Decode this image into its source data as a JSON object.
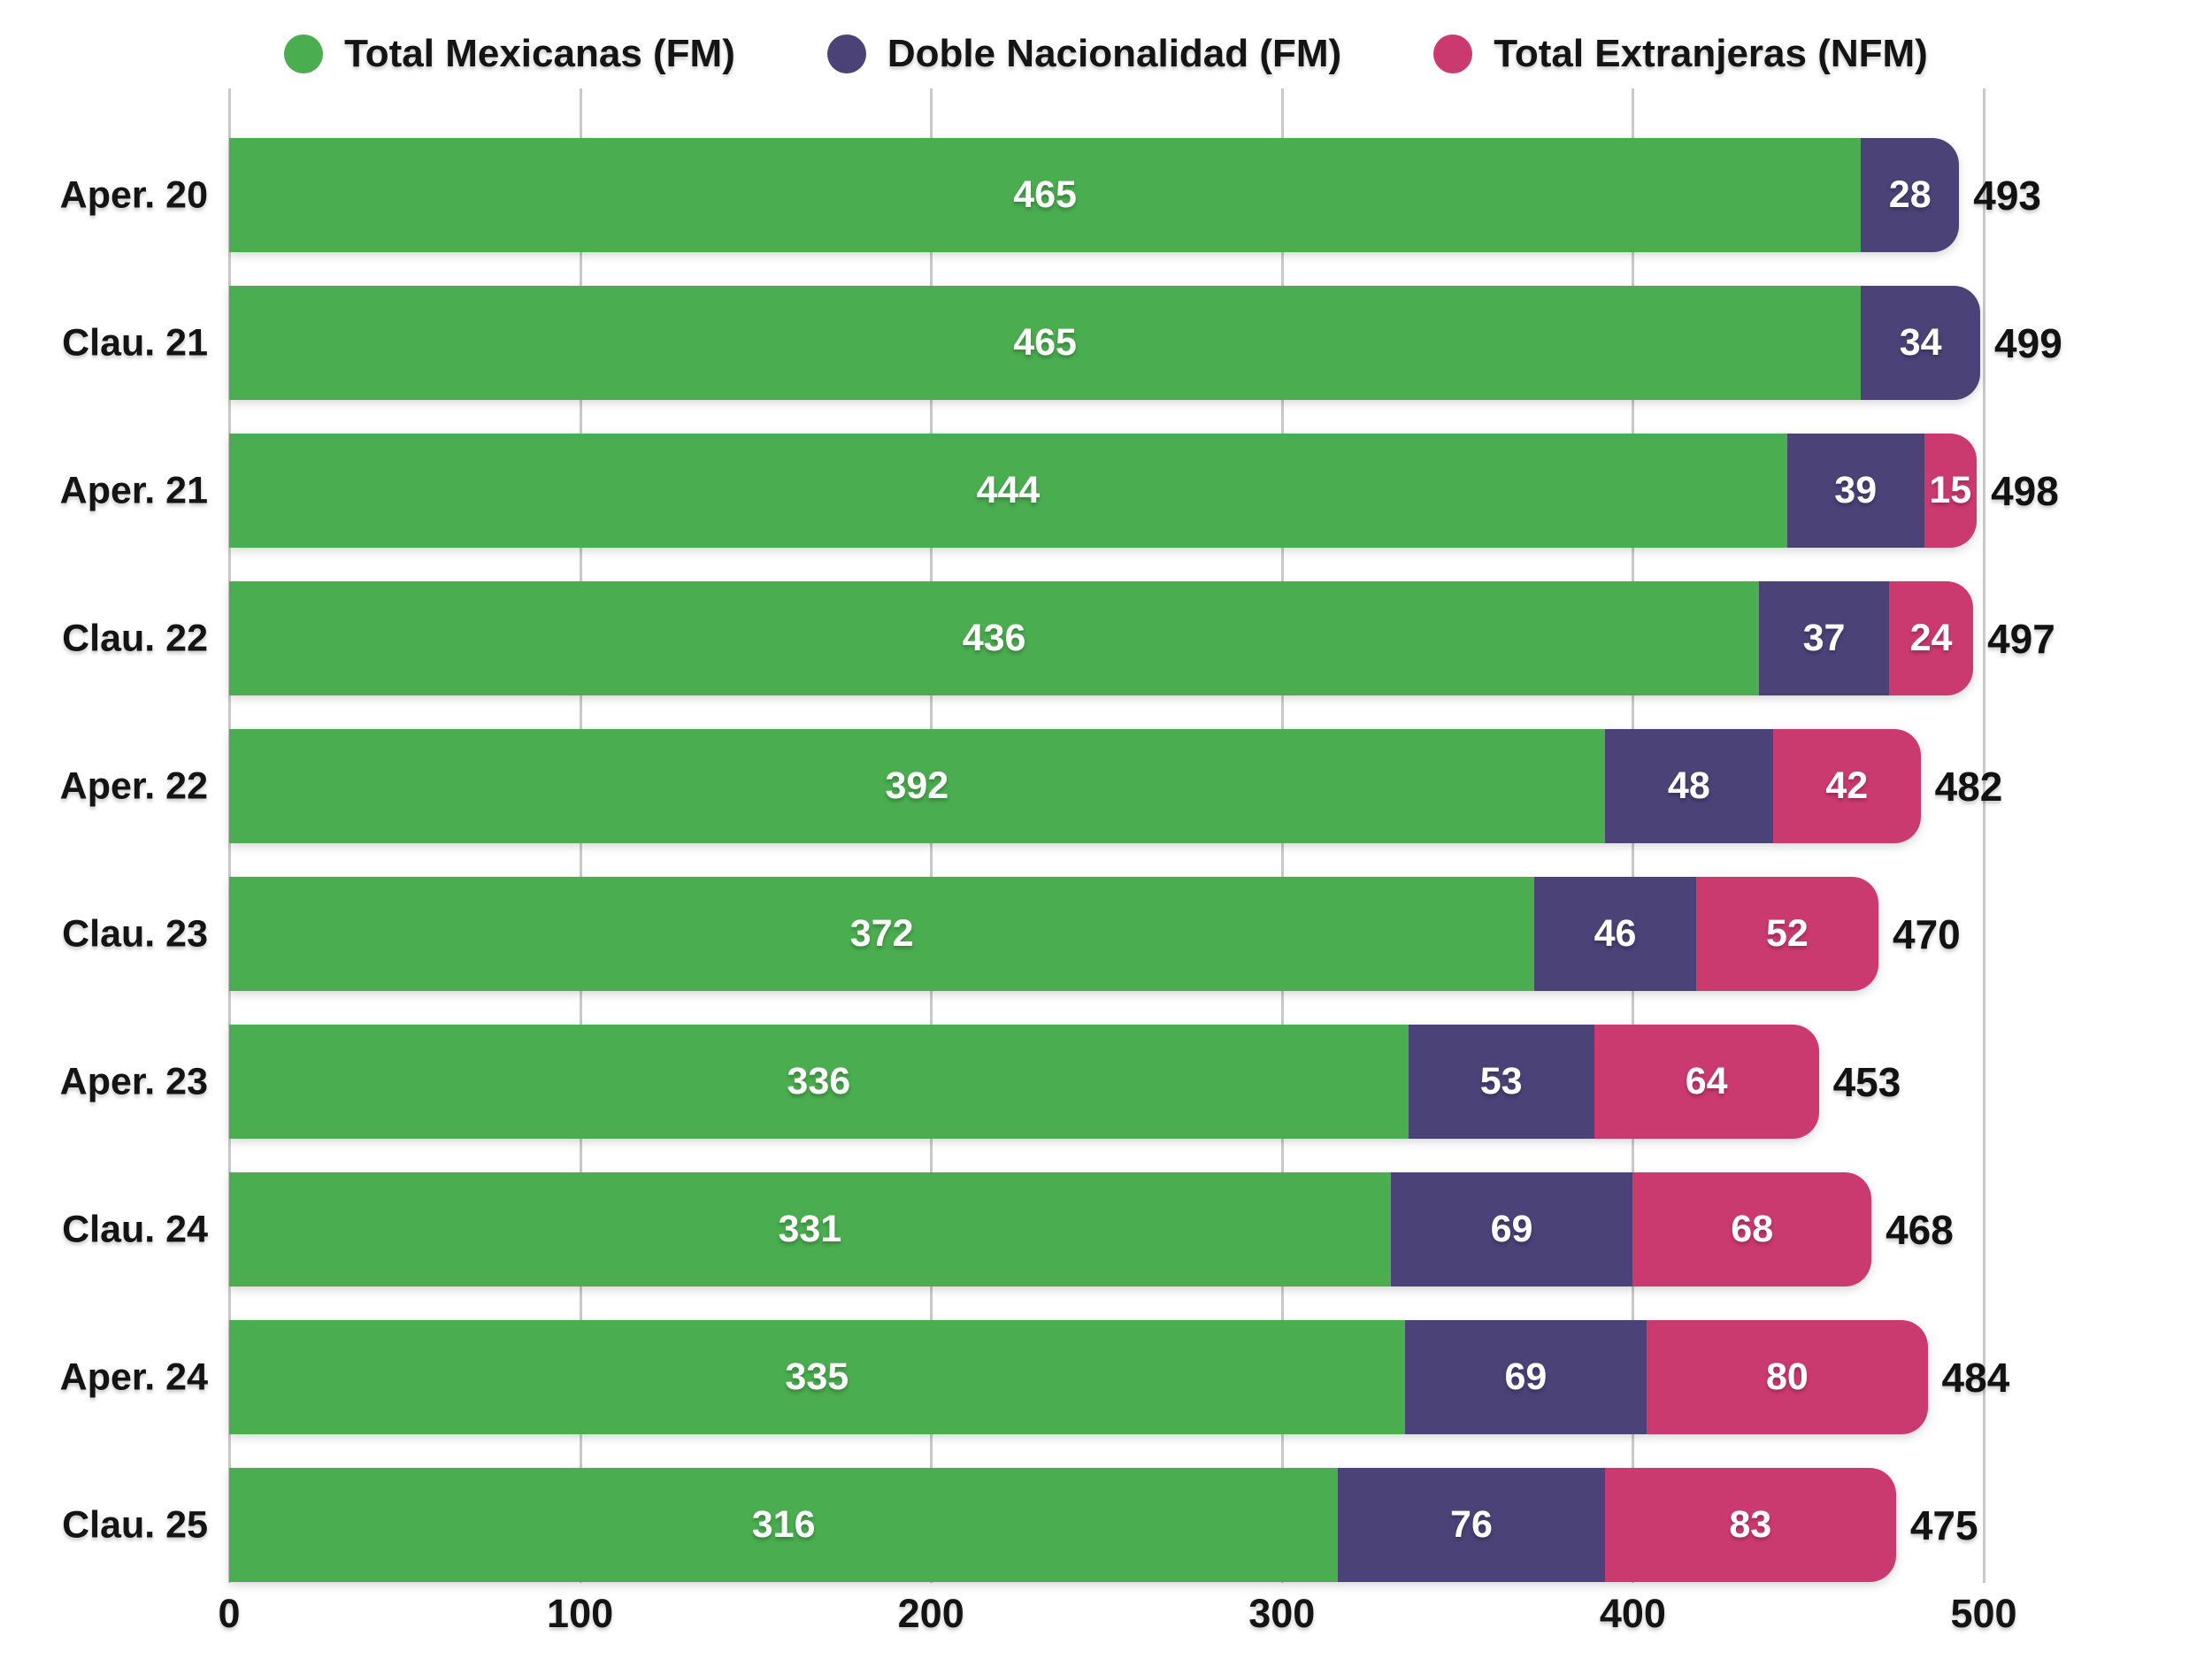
{
  "colors": {
    "background": "#FFFFFF",
    "grid": "#C9C9C9",
    "text": "#141414",
    "in_bar_value": "#FFFFFF",
    "green": "#4AAD4F",
    "purple": "#4B4277",
    "pink": "#CB3A6E"
  },
  "legend": {
    "items": [
      {
        "label": "Total Mexicanas (FM)",
        "color": "#4AAD4F",
        "icon": "legend-dot-icon"
      },
      {
        "label": "Doble Nacionalidad (FM)",
        "color": "#4B4277",
        "icon": "legend-dot-icon"
      },
      {
        "label": "Total Extranjeras (NFM)",
        "color": "#CB3A6E",
        "icon": "legend-dot-icon"
      }
    ]
  },
  "chart_data": {
    "type": "bar",
    "orientation": "horizontal",
    "stacked": true,
    "title": "",
    "xlabel": "",
    "ylabel": "",
    "categories": [
      "Aper. 20",
      "Clau. 21",
      "Aper. 21",
      "Clau. 22",
      "Aper. 22",
      "Clau. 23",
      "Aper. 23",
      "Clau. 24",
      "Aper. 24",
      "Clau. 25"
    ],
    "series": [
      {
        "name": "Total Mexicanas (FM)",
        "color": "#4AAD4F",
        "values": [
          465,
          465,
          444,
          436,
          392,
          372,
          336,
          331,
          335,
          316
        ]
      },
      {
        "name": "Doble Nacionalidad (FM)",
        "color": "#4B4277",
        "values": [
          28,
          34,
          39,
          37,
          48,
          46,
          53,
          69,
          69,
          76
        ]
      },
      {
        "name": "Total Extranjeras (NFM)",
        "color": "#CB3A6E",
        "values": [
          0,
          0,
          15,
          24,
          42,
          52,
          64,
          68,
          80,
          83
        ]
      }
    ],
    "totals": [
      493,
      499,
      498,
      497,
      482,
      470,
      453,
      468,
      484,
      475
    ],
    "x_ticks": [
      0,
      100,
      200,
      300,
      400,
      500
    ],
    "xlim": [
      0,
      500
    ],
    "grid": true,
    "legend_position": "top"
  }
}
